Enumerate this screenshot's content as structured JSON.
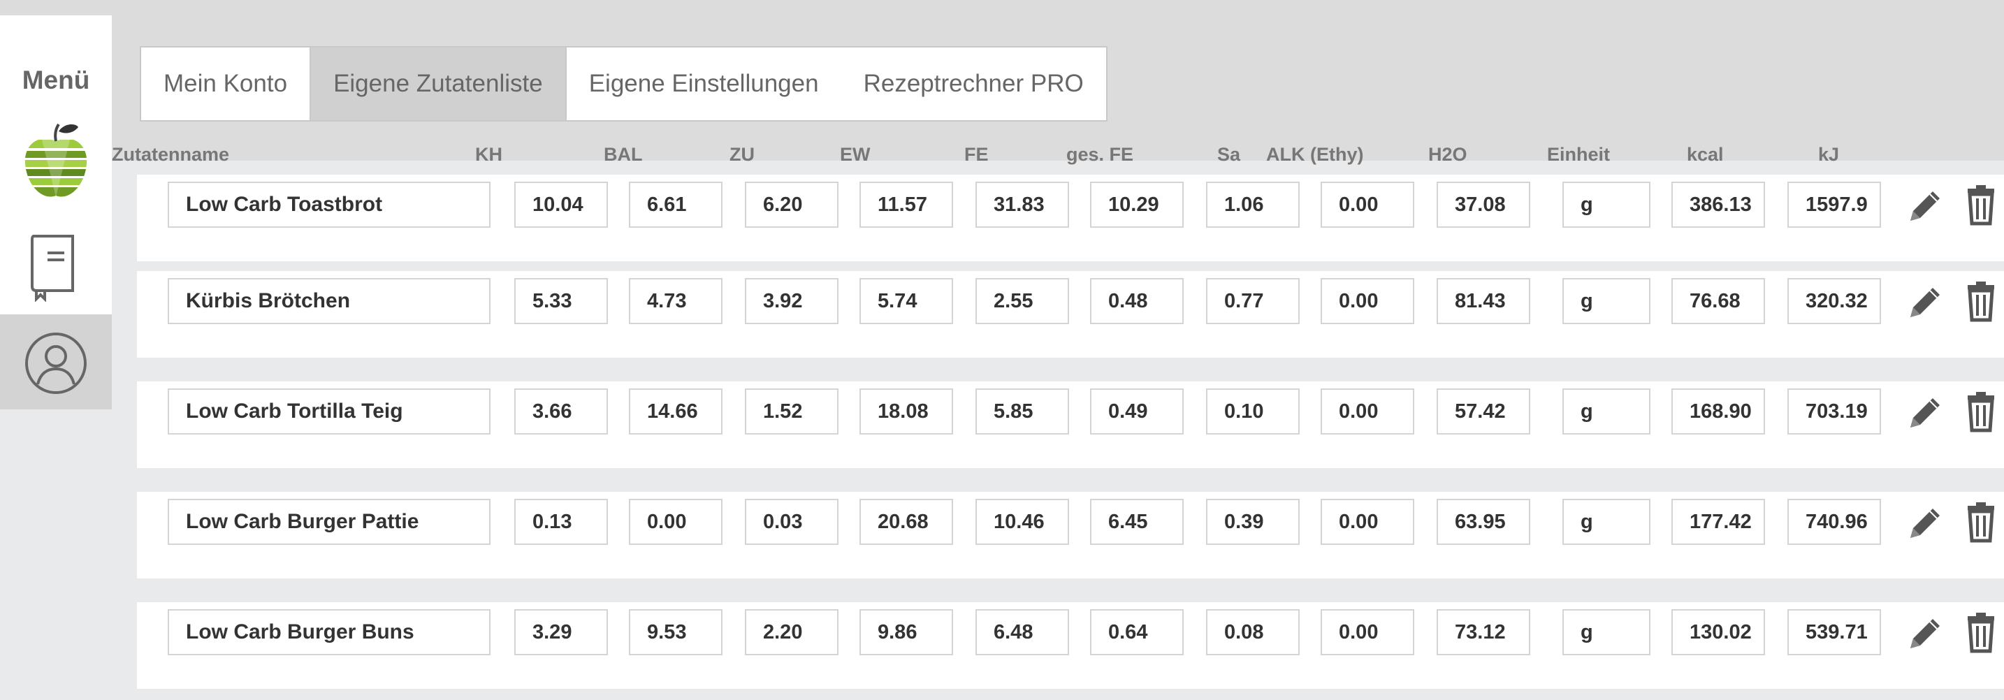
{
  "sidebar": {
    "menu_label": "Menü",
    "items": [
      {
        "icon": "apple-logo-icon"
      },
      {
        "icon": "recipe-book-icon"
      },
      {
        "icon": "user-account-icon",
        "active": true
      }
    ]
  },
  "tabs": [
    {
      "label": "Mein Konto",
      "active": false
    },
    {
      "label": "Eigene Zutatenliste",
      "active": true
    },
    {
      "label": "Eigene Einstellungen",
      "active": false
    },
    {
      "label": "Rezeptrechner PRO",
      "active": false
    }
  ],
  "columns": {
    "name": "Zutatenname",
    "kh": "KH",
    "bal": "BAL",
    "zu": "ZU",
    "ew": "EW",
    "fe": "FE",
    "ges_fe": "ges. FE",
    "sa": "Sa",
    "alk": "ALK (Ethy)",
    "h2o": "H2O",
    "einheit": "Einheit",
    "kcal": "kcal",
    "kj": "kJ"
  },
  "rows": [
    {
      "name": "Low Carb Toastbrot",
      "kh": "10.04",
      "bal": "6.61",
      "zu": "6.20",
      "ew": "11.57",
      "fe": "31.83",
      "ges_fe": "10.29",
      "sa": "1.06",
      "alk": "0.00",
      "h2o": "37.08",
      "einheit": "g",
      "kcal": "386.13",
      "kj": "1597.9"
    },
    {
      "name": "Kürbis Brötchen",
      "kh": "5.33",
      "bal": "4.73",
      "zu": "3.92",
      "ew": "5.74",
      "fe": "2.55",
      "ges_fe": "0.48",
      "sa": "0.77",
      "alk": "0.00",
      "h2o": "81.43",
      "einheit": "g",
      "kcal": "76.68",
      "kj": "320.32"
    },
    {
      "name": "Low Carb Tortilla Teig",
      "kh": "3.66",
      "bal": "14.66",
      "zu": "1.52",
      "ew": "18.08",
      "fe": "5.85",
      "ges_fe": "0.49",
      "sa": "0.10",
      "alk": "0.00",
      "h2o": "57.42",
      "einheit": "g",
      "kcal": "168.90",
      "kj": "703.19"
    },
    {
      "name": "Low Carb Burger Pattie",
      "kh": "0.13",
      "bal": "0.00",
      "zu": "0.03",
      "ew": "20.68",
      "fe": "10.46",
      "ges_fe": "6.45",
      "sa": "0.39",
      "alk": "0.00",
      "h2o": "63.95",
      "einheit": "g",
      "kcal": "177.42",
      "kj": "740.96"
    },
    {
      "name": "Low Carb Burger Buns",
      "kh": "3.29",
      "bal": "9.53",
      "zu": "2.20",
      "ew": "9.86",
      "fe": "6.48",
      "ges_fe": "0.64",
      "sa": "0.08",
      "alk": "0.00",
      "h2o": "73.12",
      "einheit": "g",
      "kcal": "130.02",
      "kj": "539.71"
    }
  ],
  "row_actions": {
    "edit_icon": "pencil-icon",
    "delete_icon": "trash-icon"
  },
  "colors": {
    "accent_green": "#8cbf26",
    "dark_green": "#3a6b1e",
    "page_bg": "#dcdcdc"
  }
}
